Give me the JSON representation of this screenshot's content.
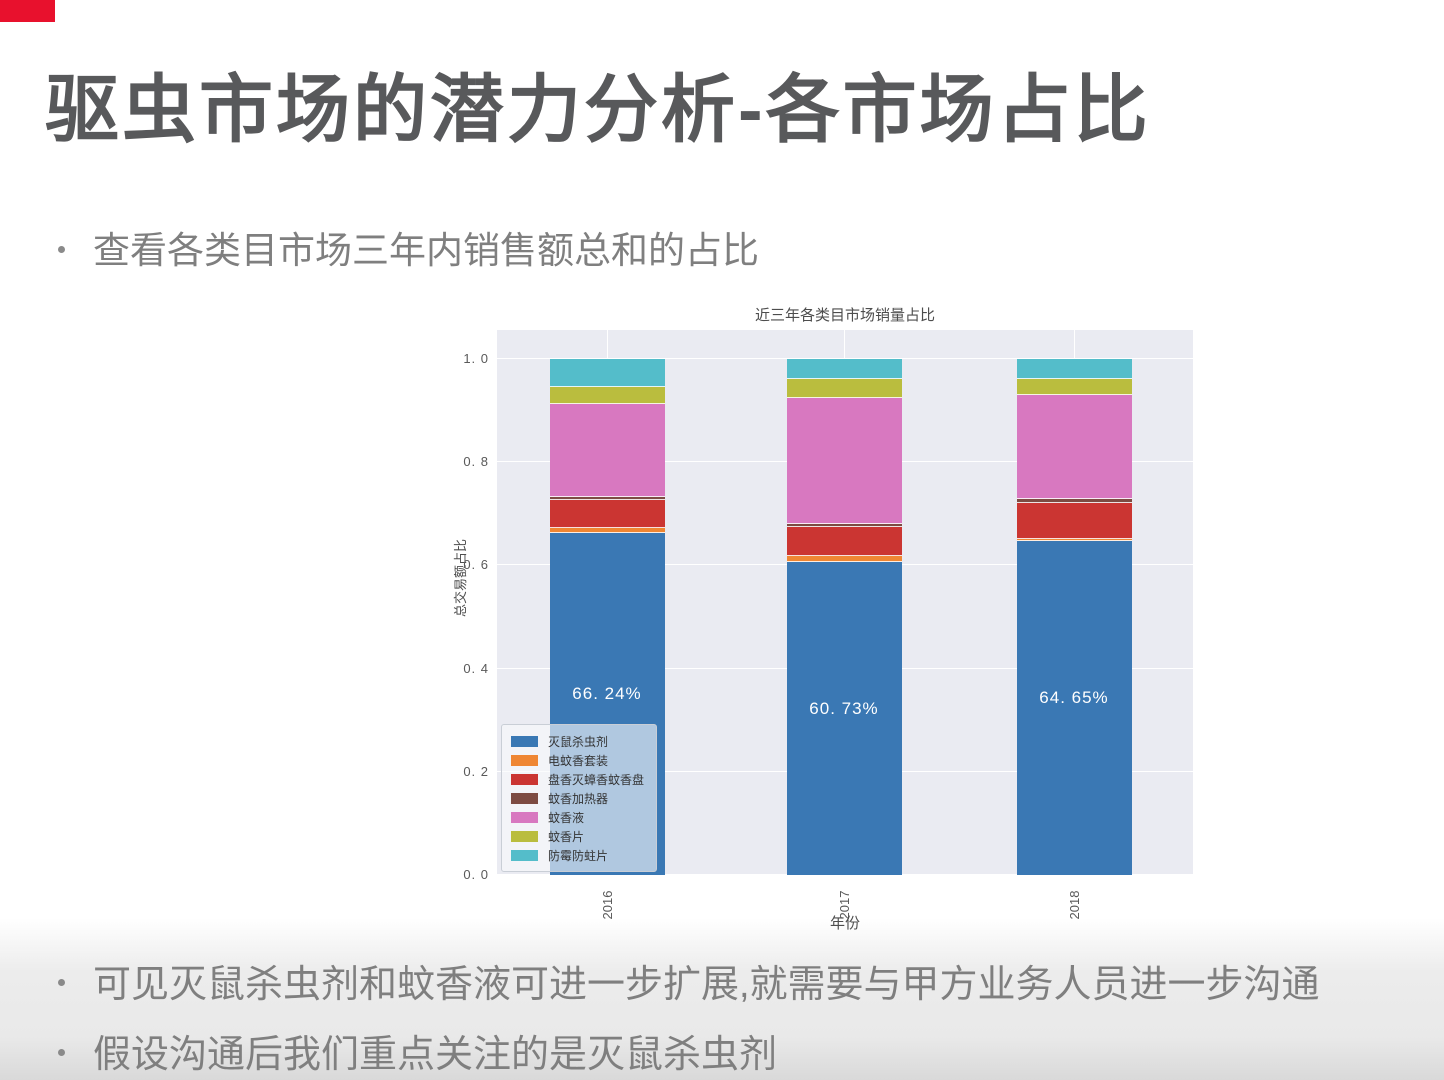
{
  "accent_color": "#e8112d",
  "title": "驱虫市场的潜力分析-各市场占比",
  "bullets_top": [
    "查看各类目市场三年内销售额总和的占比"
  ],
  "bullets_bottom": [
    "可见灭鼠杀虫剂和蚊香液可进一步扩展,就需要与甲方业务人员进一步沟通",
    "假设沟通后我们重点关注的是灭鼠杀虫剂"
  ],
  "chart_data": {
    "type": "bar",
    "stacked": true,
    "title": "近三年各类目市场销量占比",
    "xlabel": "年份",
    "ylabel": "总交易额占比",
    "categories": [
      "2016",
      "2017",
      "2018"
    ],
    "ylim": [
      0.0,
      1.0
    ],
    "yticks": [
      {
        "label": "0. 0",
        "value": 0.0
      },
      {
        "label": "0. 2",
        "value": 0.2
      },
      {
        "label": "0. 4",
        "value": 0.4
      },
      {
        "label": "0. 6",
        "value": 0.6
      },
      {
        "label": "0. 8",
        "value": 0.8
      },
      {
        "label": "1. 0",
        "value": 1.0
      }
    ],
    "grid": true,
    "legend_position": "lower left",
    "plot_background": "#eaebf2",
    "series": [
      {
        "name": "灭鼠杀虫剂",
        "color": "#3a78b4",
        "values": [
          0.6624,
          0.6073,
          0.6465
        ]
      },
      {
        "name": "电蚊香套装",
        "color": "#ef8633",
        "values": [
          0.01,
          0.011,
          0.005
        ]
      },
      {
        "name": "盘香灭蟑香蚊香盘",
        "color": "#cb3532",
        "values": [
          0.0535,
          0.056,
          0.07
        ]
      },
      {
        "name": "蚊香加热器",
        "color": "#7d4b42",
        "values": [
          0.006,
          0.006,
          0.0075
        ]
      },
      {
        "name": "蚊香液",
        "color": "#d878c0",
        "values": [
          0.181,
          0.244,
          0.201
        ]
      },
      {
        "name": "蚊香片",
        "color": "#babd3e",
        "values": [
          0.033,
          0.0365,
          0.032
        ]
      },
      {
        "name": "防霉防蛀片",
        "color": "#54bdca",
        "values": [
          0.0541,
          0.0392,
          0.038
        ]
      }
    ],
    "bar_labels": [
      "66. 24%",
      "60. 73%",
      "64. 65%"
    ]
  }
}
